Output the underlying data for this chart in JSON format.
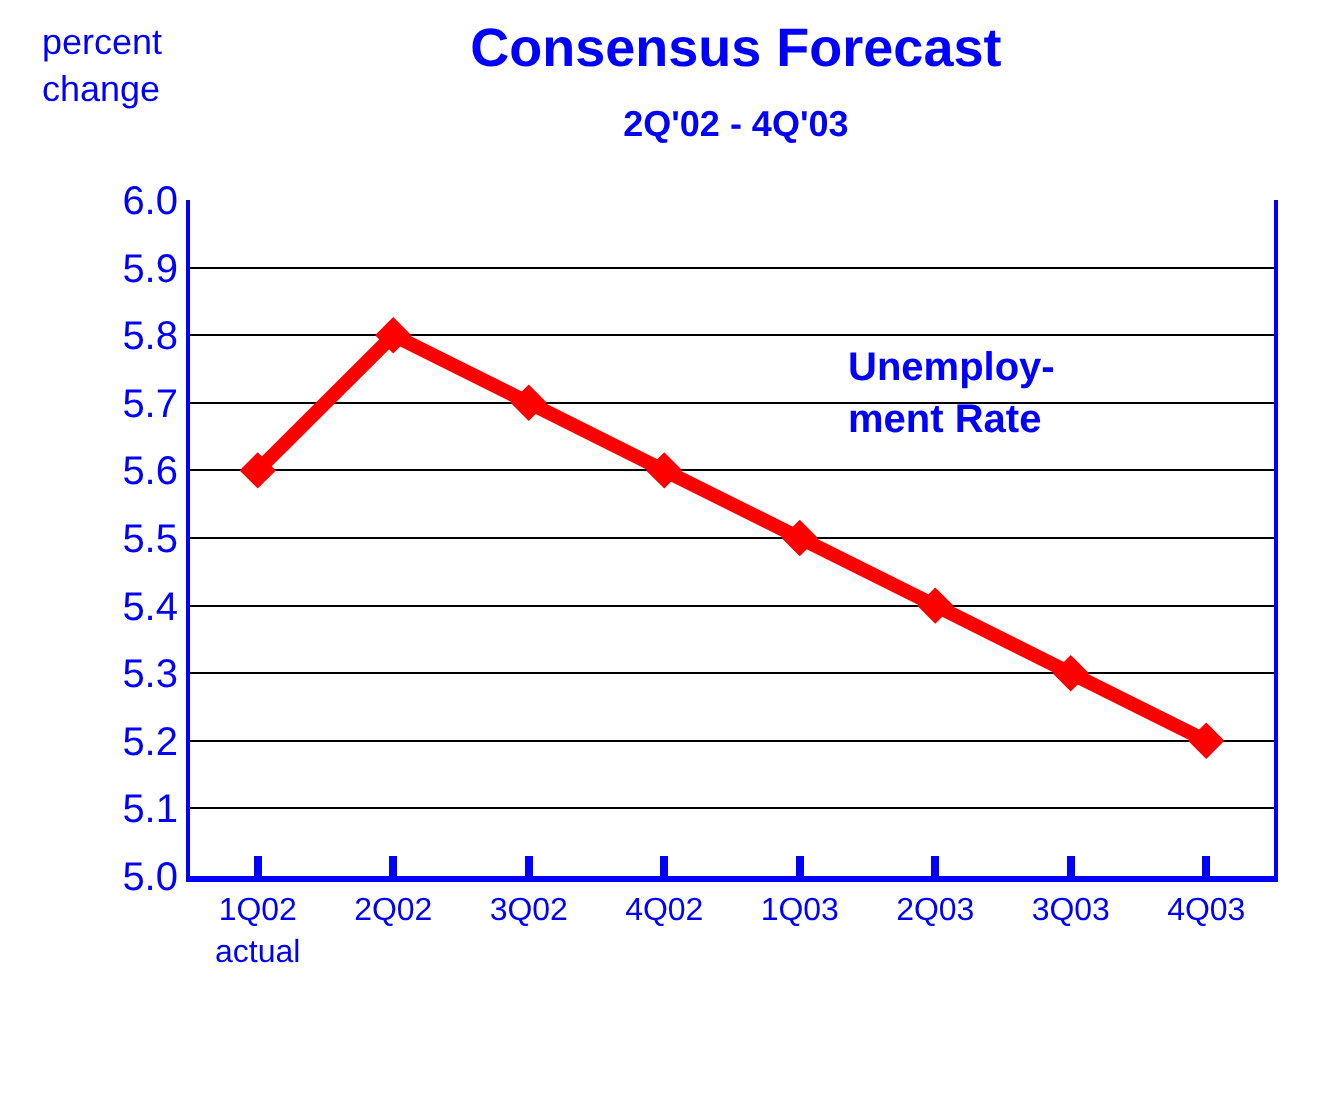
{
  "chart_data": {
    "type": "line",
    "title": "Consensus Forecast",
    "subtitle": "2Q'02 - 4Q'03",
    "ylabel": "percent\nchange",
    "categories": [
      "1Q02\nactual",
      "2Q02",
      "3Q02",
      "4Q02",
      "1Q03",
      "2Q03",
      "3Q03",
      "4Q03"
    ],
    "series": [
      {
        "color": "#ff0000",
        "values": [
          5.6,
          5.8,
          5.7,
          5.6,
          5.5,
          5.4,
          5.3,
          5.2
        ]
      }
    ],
    "annotations": [
      "Unemploy-\nment Rate"
    ],
    "ylim": [
      5.0,
      6.0
    ],
    "yticks": [
      {
        "value": 5.0,
        "label": "5.0"
      },
      {
        "value": 5.1,
        "label": "5.1"
      },
      {
        "value": 5.2,
        "label": "5.2"
      },
      {
        "value": 5.3,
        "label": "5.3"
      },
      {
        "value": 5.4,
        "label": "5.4"
      },
      {
        "value": 5.5,
        "label": "5.5"
      },
      {
        "value": 5.6,
        "label": "5.6"
      },
      {
        "value": 5.7,
        "label": "5.7"
      },
      {
        "value": 5.8,
        "label": "5.8"
      },
      {
        "value": 5.9,
        "label": "5.9"
      },
      {
        "value": 6.0,
        "label": "6.0"
      }
    ],
    "grid": "y",
    "marker": "diamond",
    "line_style": "solid"
  }
}
